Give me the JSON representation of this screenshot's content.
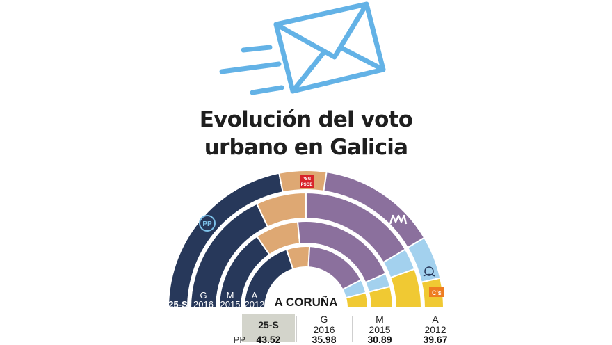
{
  "title_line1": "Evolución del voto",
  "title_line2": "urbano en Galicia",
  "city": "A CORUÑA",
  "icons": {
    "envelope": "envelope-icon",
    "pp": "pp-logo",
    "psoe": "psdeg-psoe-logo",
    "marea": "marea-logo",
    "bng": "bng-logo",
    "cs": "ciudadanos-logo"
  },
  "logo_text": {
    "psoe": "PSOE",
    "psdeg": "PSG",
    "cs": "C's"
  },
  "colors": {
    "pp": "#27385a",
    "psoe": "#dea873",
    "marea": "#8b709d",
    "bng": "#a3d1ee",
    "cs": "#f0c933",
    "envelope": "#63b2e6"
  },
  "chart_data": {
    "type": "pie",
    "subtype": "stacked-semicircle",
    "rings_outer_to_inner": [
      "25-S",
      "G 2016",
      "M 2015",
      "A 2012"
    ],
    "ring_labels": [
      {
        "top": "",
        "bottom": "25-S"
      },
      {
        "top": "G",
        "bottom": "2016"
      },
      {
        "top": "M",
        "bottom": "2015"
      },
      {
        "top": "A",
        "bottom": "2012"
      }
    ],
    "series": [
      {
        "name": "PP",
        "values": [
          43.52,
          35.98,
          30.89,
          39.67
        ]
      },
      {
        "name": "PSOE",
        "values": [
          11,
          14,
          16,
          12
        ]
      },
      {
        "name": "Marea",
        "values": [
          28,
          33,
          40,
          33
        ]
      },
      {
        "name": "BNG",
        "values": [
          10,
          6,
          5,
          7
        ]
      },
      {
        "name": "Cs",
        "values": [
          7,
          11,
          8,
          8
        ]
      }
    ]
  },
  "table": {
    "headers": [
      {
        "top": "25-S",
        "bottom": "",
        "selected": true
      },
      {
        "top": "G",
        "bottom": "2016",
        "selected": false
      },
      {
        "top": "M",
        "bottom": "2015",
        "selected": false
      },
      {
        "top": "A",
        "bottom": "2012",
        "selected": false
      }
    ],
    "rows": [
      {
        "label": "PP",
        "values": [
          "43.52",
          "35.98",
          "30.89",
          "39.67"
        ]
      }
    ]
  }
}
